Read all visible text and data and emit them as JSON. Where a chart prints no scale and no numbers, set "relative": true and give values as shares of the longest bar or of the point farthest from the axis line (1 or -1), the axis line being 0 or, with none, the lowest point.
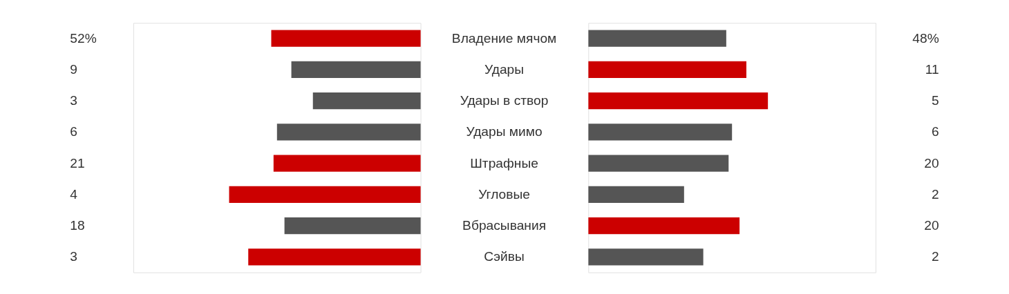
{
  "chart_data": [
    {
      "type": "bar",
      "orientation": "horizontal",
      "relative": true,
      "categories": [
        "Владение мячом",
        "Удары",
        "Удары в створ",
        "Удары мимо",
        "Штрафные",
        "Угловые",
        "Вбрасывания",
        "Сэйвы"
      ],
      "values": [
        0.78,
        0.675,
        0.5625,
        0.75,
        0.768,
        1,
        0.711,
        0.9
      ],
      "colors": [
        "#cc0000",
        "#555555",
        "#555555",
        "#555555",
        "#cc0000",
        "#cc0000",
        "#555555",
        "#cc0000"
      ],
      "annotations": [
        "52%",
        "9",
        "3",
        "6",
        "21",
        "4",
        "18",
        "3"
      ]
    },
    {
      "type": "bar",
      "orientation": "horizontal",
      "relative": true,
      "tick_labels": false,
      "categories": [
        "Владение мячом",
        "Удары",
        "Удары в створ",
        "Удары мимо",
        "Штрафные",
        "Угловые",
        "Вбрасывания",
        "Сэйвы"
      ],
      "values": [
        0.768,
        0.88,
        1,
        0.8,
        0.781,
        0.533,
        0.842,
        0.64
      ],
      "colors": [
        "#555555",
        "#cc0000",
        "#cc0000",
        "#555555",
        "#555555",
        "#555555",
        "#cc0000",
        "#555555"
      ],
      "annotations": [
        "48%",
        "11",
        "5",
        "6",
        "20",
        "2",
        "20",
        "2"
      ]
    }
  ]
}
